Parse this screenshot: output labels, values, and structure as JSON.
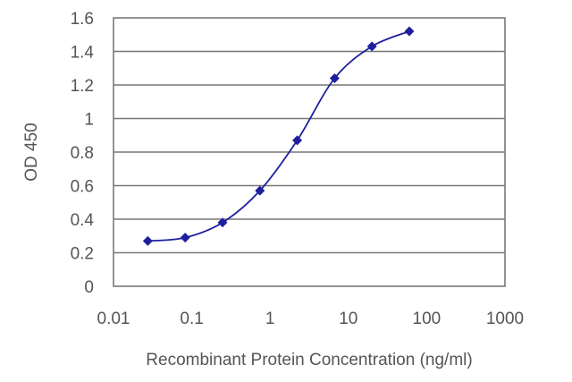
{
  "chart_data": {
    "type": "line",
    "title": "",
    "xlabel": "Recombinant Protein Concentration (ng/ml)",
    "ylabel": "OD 450",
    "x_scale": "log",
    "xlim": [
      0.01,
      1000
    ],
    "ylim": [
      0,
      1.6
    ],
    "x_ticks": [
      "0.01",
      "0.1",
      "1",
      "10",
      "100",
      "1000"
    ],
    "y_ticks": [
      "0",
      "0.2",
      "0.4",
      "0.6",
      "0.8",
      "1",
      "1.2",
      "1.4",
      "1.6"
    ],
    "grid": "horizontal",
    "legend": "none",
    "series": [
      {
        "color": "#1f1f9e",
        "marker": "diamond",
        "x": [
          0.0274,
          0.0823,
          0.247,
          0.741,
          2.22,
          6.67,
          20,
          60
        ],
        "y": [
          0.27,
          0.29,
          0.38,
          0.57,
          0.87,
          1.24,
          1.43,
          1.52
        ]
      }
    ]
  }
}
